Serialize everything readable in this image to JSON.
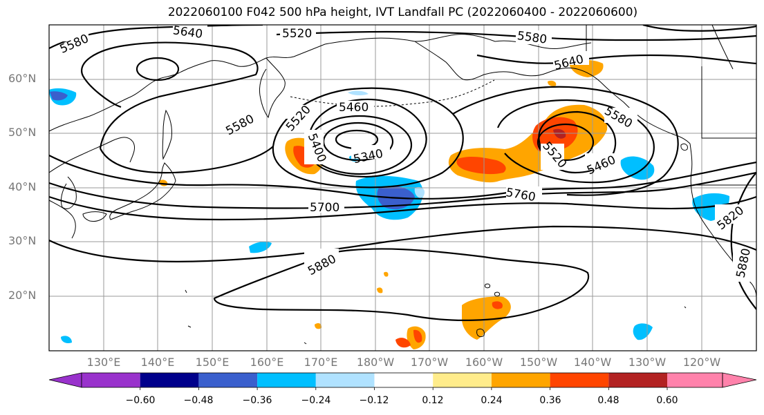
{
  "title": "2022060100 F042 500 hPa height, IVT Landfall PC (2022060400 - 2022060600)",
  "lat_labels": [
    "60°N",
    "50°N",
    "40°N",
    "30°N",
    "20°N"
  ],
  "lon_labels": [
    "130°E",
    "140°E",
    "150°E",
    "160°E",
    "170°E",
    "180°W",
    "170°W",
    "160°W",
    "150°W",
    "140°W",
    "130°W",
    "120°W"
  ],
  "contour_labels": [
    "5580",
    "5640",
    "5520",
    "5580",
    "5640",
    "5580",
    "5520",
    "5460",
    "5400",
    "5340",
    "5580",
    "5520",
    "5460",
    "5700",
    "5760",
    "5820",
    "5880",
    "5880"
  ],
  "colorbar": {
    "colors": [
      "#9932CC",
      "#00008B",
      "#3A5FCD",
      "#00BFFF",
      "#B0E2FF",
      "#FFFFFF",
      "#FFEC8B",
      "#FFA500",
      "#FF4500",
      "#B22222",
      "#FF82AB"
    ],
    "ticks": [
      "−0.60",
      "−0.48",
      "−0.36",
      "−0.24",
      "−0.12",
      "0.12",
      "0.24",
      "0.36",
      "0.48",
      "0.60"
    ]
  }
}
